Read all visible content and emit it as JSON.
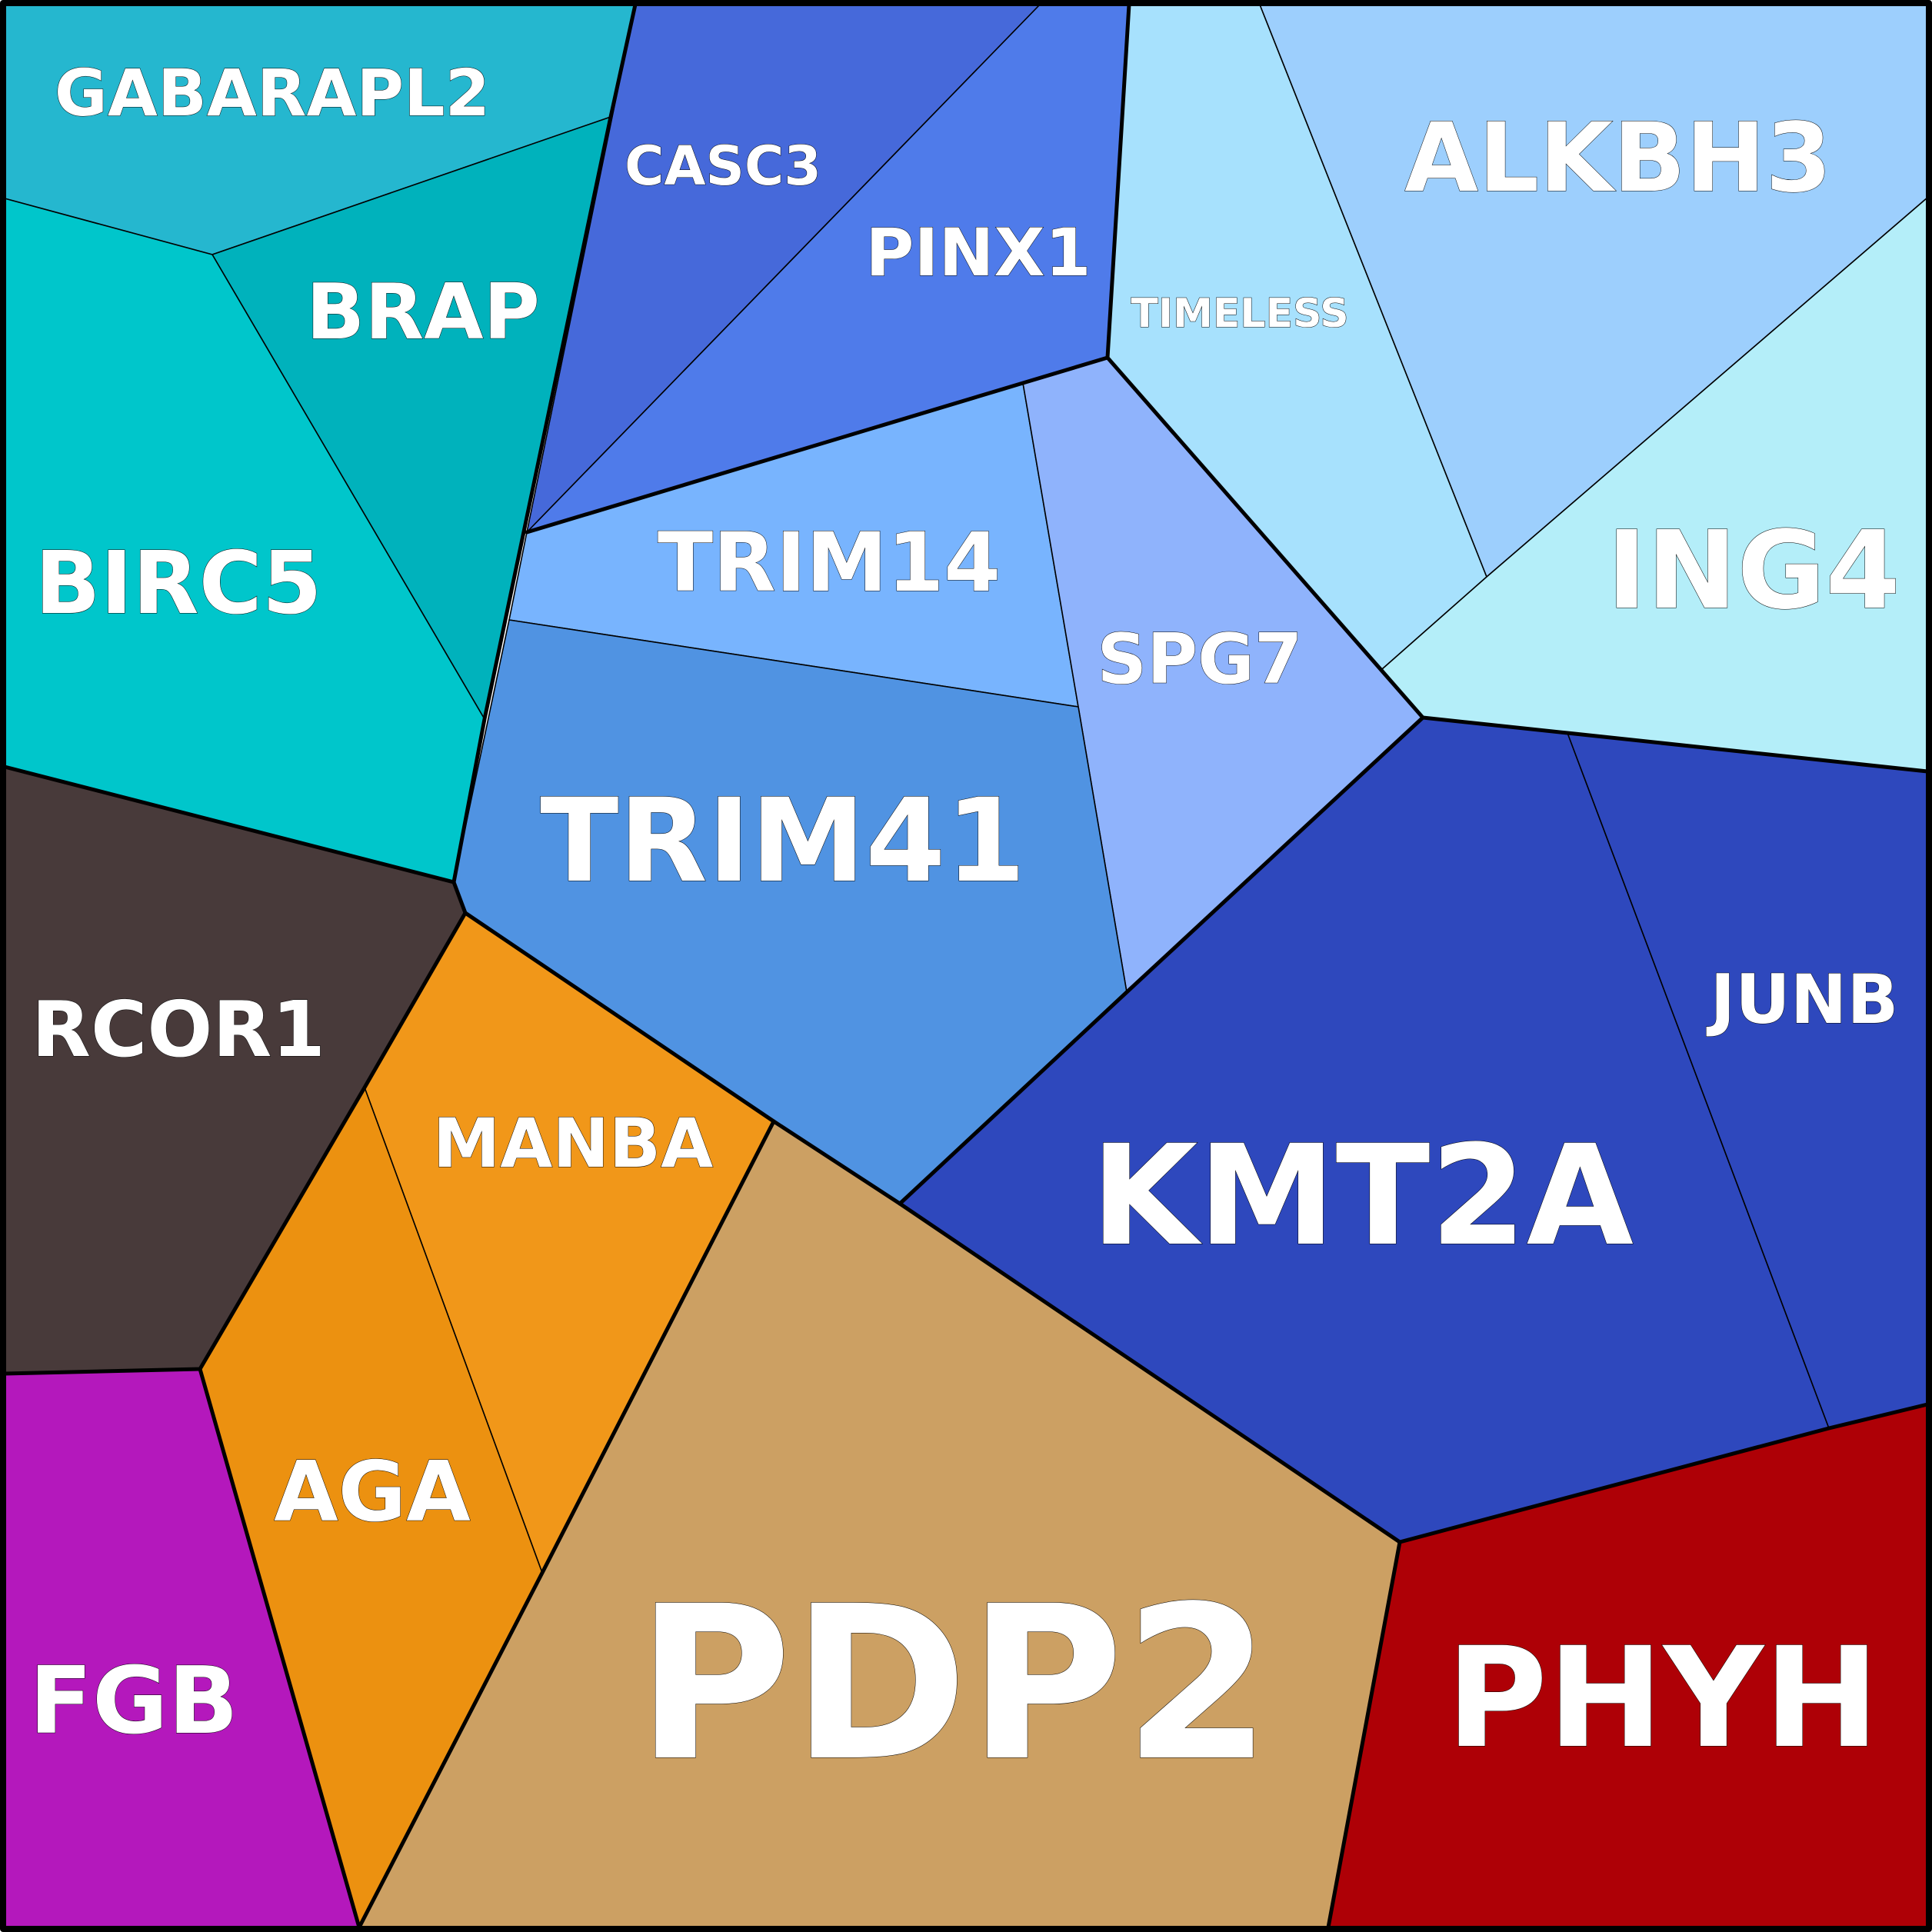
{
  "cells": [
    {
      "id": "gabarapl2",
      "label": "GABARAPL2",
      "color": "#25b7cf"
    },
    {
      "id": "brap",
      "label": "BRAP",
      "color": "#00b2bc"
    },
    {
      "id": "birc5",
      "label": "BIRC5",
      "color": "#00c6cb"
    },
    {
      "id": "casc3",
      "label": "CASC3",
      "color": "#4669da"
    },
    {
      "id": "pinx1",
      "label": "PINX1",
      "color": "#4f7bea"
    },
    {
      "id": "timeless",
      "label": "TIMELESS",
      "color": "#a7e1fd"
    },
    {
      "id": "alkbh3",
      "label": "ALKBH3",
      "color": "#9dcffd"
    },
    {
      "id": "ing4",
      "label": "ING4",
      "color": "#b4eef9"
    },
    {
      "id": "trim14",
      "label": "TRIM14",
      "color": "#78b4fe"
    },
    {
      "id": "spg7",
      "label": "SPG7",
      "color": "#8fb3fc"
    },
    {
      "id": "trim41",
      "label": "TRIM41",
      "color": "#5093e2"
    },
    {
      "id": "rcor1",
      "label": "RCOR1",
      "color": "#483a3a"
    },
    {
      "id": "manba",
      "label": "MANBA",
      "color": "#f19719"
    },
    {
      "id": "aga",
      "label": "AGA",
      "color": "#ec9110"
    },
    {
      "id": "kmt2a",
      "label": "KMT2A",
      "color": "#2e48bd"
    },
    {
      "id": "junb",
      "label": "JUNB",
      "color": "#2e48bd"
    },
    {
      "id": "pdp2",
      "label": "PDP2",
      "color": "#cca063"
    },
    {
      "id": "fgb",
      "label": "FGB",
      "color": "#b418bc"
    },
    {
      "id": "phyh",
      "label": "PHYH",
      "color": "#ae0006"
    }
  ]
}
